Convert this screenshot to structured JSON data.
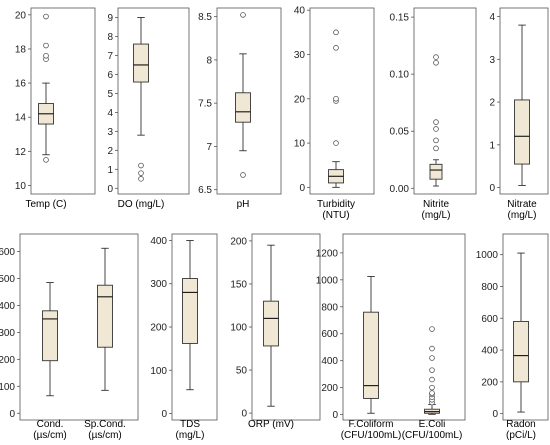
{
  "style": {
    "box_fill": "#f0e8d4",
    "line_color": "#333333"
  },
  "chart_data": [
    {
      "type": "boxplot",
      "ylim": [
        9.5,
        20.4
      ],
      "yticks": [
        10,
        12,
        14,
        16,
        18,
        20
      ],
      "series": [
        {
          "name": "Temp (C)",
          "min": 11.8,
          "q1": 13.6,
          "median": 14.2,
          "q3": 14.8,
          "max": 16.0,
          "outliers": [
            11.5,
            17.4,
            17.6,
            18.2,
            19.9
          ]
        }
      ]
    },
    {
      "type": "boxplot",
      "ylim": [
        -0.3,
        9.5
      ],
      "yticks": [
        0,
        1,
        2,
        3,
        4,
        5,
        6,
        7,
        8,
        9
      ],
      "series": [
        {
          "name": "DO (mg/L)",
          "min": 2.8,
          "q1": 5.6,
          "median": 6.5,
          "q3": 7.6,
          "max": 9.0,
          "outliers": [
            0.5,
            0.8,
            1.2
          ]
        }
      ]
    },
    {
      "type": "boxplot",
      "ylim": [
        6.45,
        8.6
      ],
      "yticks": [
        6.5,
        7.0,
        7.5,
        8.0,
        8.5
      ],
      "series": [
        {
          "name": "pH",
          "min": 6.95,
          "q1": 7.28,
          "median": 7.4,
          "q3": 7.62,
          "max": 8.07,
          "outliers": [
            6.67,
            8.52
          ]
        }
      ]
    },
    {
      "type": "boxplot",
      "ylim": [
        -1.5,
        40.5
      ],
      "yticks": [
        0,
        10,
        20,
        30,
        40
      ],
      "series": [
        {
          "name": "Turbidity",
          "unit": "(NTU)",
          "min": 0,
          "q1": 1.0,
          "median": 2.5,
          "q3": 4.0,
          "max": 5.8,
          "outliers": [
            10.0,
            19.5,
            20.0,
            31.5,
            35.0
          ]
        }
      ]
    },
    {
      "type": "boxplot",
      "ylim": [
        -0.005,
        0.158
      ],
      "yticks": [
        0.0,
        0.05,
        0.1,
        0.15
      ],
      "tick_labels": [
        "0.00",
        "0.05",
        "0.10",
        "0.15"
      ],
      "series": [
        {
          "name": "Nitrite",
          "unit": "(mg/L)",
          "min": 0.002,
          "q1": 0.008,
          "median": 0.016,
          "q3": 0.021,
          "max": 0.025,
          "outliers": [
            0.035,
            0.042,
            0.052,
            0.058,
            0.11,
            0.115
          ]
        }
      ]
    },
    {
      "type": "boxplot",
      "ylim": [
        -0.15,
        4.2
      ],
      "yticks": [
        0,
        1,
        2,
        3,
        4
      ],
      "series": [
        {
          "name": "Nitrate",
          "unit": "(mg/L)",
          "min": 0.05,
          "q1": 0.55,
          "median": 1.2,
          "q3": 2.05,
          "max": 3.8,
          "outliers": []
        }
      ]
    },
    {
      "type": "boxplot",
      "ylim": [
        -25,
        665
      ],
      "yticks": [
        0,
        100,
        200,
        300,
        400,
        500,
        600
      ],
      "series": [
        {
          "name": "Cond.",
          "unit": "(µs/cm)",
          "min": 65,
          "q1": 195,
          "median": 350,
          "q3": 380,
          "max": 485,
          "outliers": []
        },
        {
          "name": "Sp.Cond.",
          "unit": "(µs/cm)",
          "min": 85,
          "q1": 245,
          "median": 432,
          "q3": 475,
          "max": 612,
          "outliers": []
        }
      ]
    },
    {
      "type": "boxplot",
      "ylim": [
        -15,
        415
      ],
      "yticks": [
        0,
        100,
        200,
        300,
        400
      ],
      "series": [
        {
          "name": "TDS",
          "unit": "(mg/L)",
          "min": 55,
          "q1": 162,
          "median": 280,
          "q3": 312,
          "max": 400,
          "outliers": []
        }
      ]
    },
    {
      "type": "boxplot",
      "ylim": [
        -8,
        208
      ],
      "yticks": [
        0,
        50,
        100,
        150,
        200
      ],
      "series": [
        {
          "name": "ORP (mV)",
          "min": 8,
          "q1": 78,
          "median": 110,
          "q3": 130,
          "max": 195,
          "outliers": []
        }
      ]
    },
    {
      "type": "boxplot",
      "ylim": [
        -40,
        1340
      ],
      "yticks": [
        0,
        200,
        400,
        600,
        800,
        1000,
        1200
      ],
      "series": [
        {
          "name": "F.Coliform",
          "unit": "(CFU/100mL)",
          "min": 10,
          "q1": 120,
          "median": 215,
          "q3": 760,
          "max": 1025,
          "outliers": []
        },
        {
          "name": "E.Coli",
          "unit": "(CFU/100mL)",
          "min": 2,
          "q1": 10,
          "median": 22,
          "q3": 40,
          "max": 75,
          "outliers": [
            90,
            110,
            130,
            150,
            160,
            200,
            260,
            330,
            420,
            490,
            635
          ]
        }
      ]
    },
    {
      "type": "boxplot",
      "ylim": [
        -40,
        1130
      ],
      "yticks": [
        0,
        200,
        400,
        600,
        800,
        1000
      ],
      "series": [
        {
          "name": "Radon",
          "unit": "(pCi/L)",
          "min": 10,
          "q1": 200,
          "median": 365,
          "q3": 580,
          "max": 1010,
          "outliers": []
        }
      ]
    }
  ]
}
